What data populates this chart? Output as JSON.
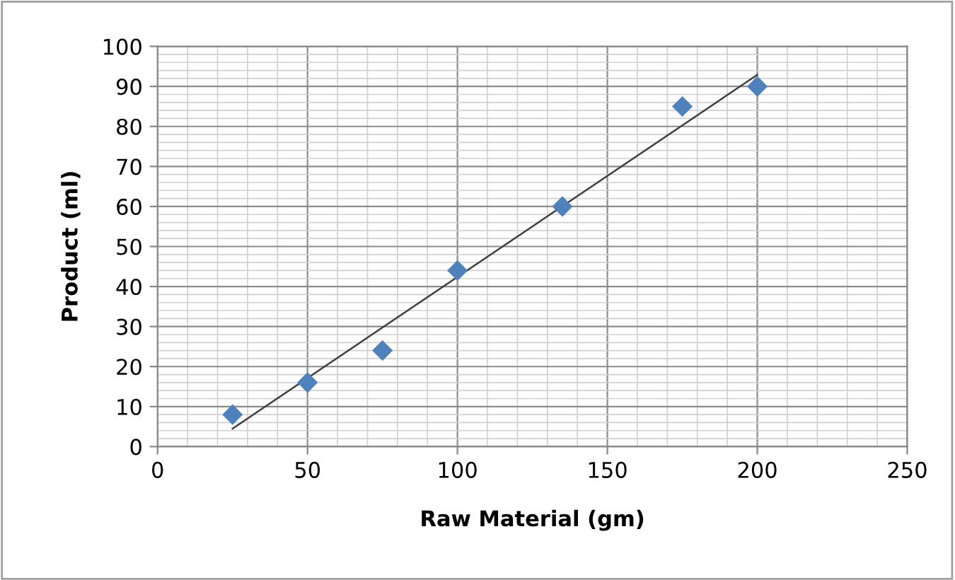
{
  "chart_data": {
    "type": "scatter",
    "xlabel": "Raw Material (gm)",
    "ylabel": "Product (ml)",
    "xlim": [
      0,
      250
    ],
    "xticks": [
      0,
      50,
      100,
      150,
      200,
      250
    ],
    "ylim": [
      0,
      100
    ],
    "yticks": [
      0,
      10,
      20,
      30,
      40,
      50,
      60,
      70,
      80,
      90,
      100
    ],
    "grid": true,
    "marker": "diamond",
    "series": [
      {
        "color": "#4f81bd",
        "x": [
          25,
          50,
          75,
          100,
          135,
          175,
          200
        ],
        "values": [
          8,
          16,
          24,
          44,
          60,
          85,
          90
        ]
      },
      {
        "type": "line",
        "color": "#404040",
        "x": [
          25,
          200
        ],
        "values": [
          4.5,
          92.9
        ],
        "marker": "none",
        "line_style": "solid"
      }
    ]
  }
}
